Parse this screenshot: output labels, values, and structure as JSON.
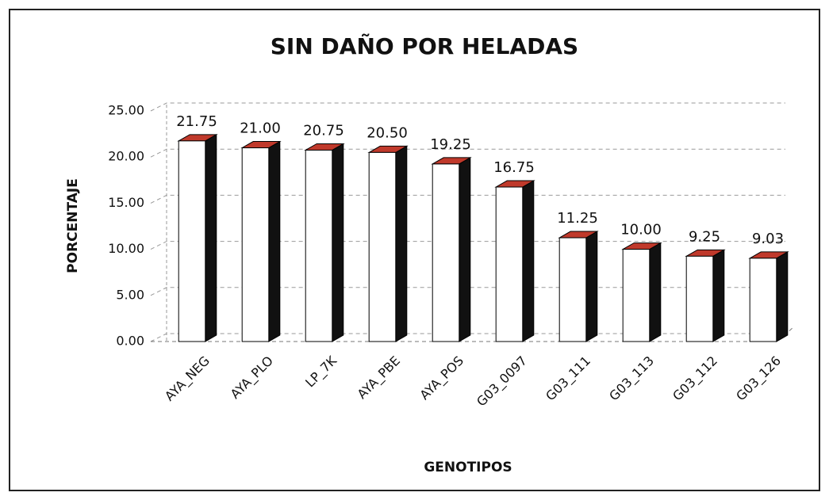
{
  "chart_data": {
    "type": "bar3d",
    "title": "SIN DAÑO POR HELADAS",
    "x_label": "GENOTIPOS",
    "y_label": "PORCENTAJE",
    "categories": [
      "AYA_NEG",
      "AYA_PLO",
      "LP_7K",
      "AYA_PBE",
      "AYA_POS",
      "G03_0097",
      "G03_111",
      "G03_113",
      "G03_112",
      "G03_126"
    ],
    "values": [
      21.75,
      21.0,
      20.75,
      20.5,
      19.25,
      16.75,
      11.25,
      10.0,
      9.25,
      9.03
    ],
    "value_labels": [
      "21.75",
      "21.00",
      "20.75",
      "20.50",
      "19.25",
      "16.75",
      "11.25",
      "10.00",
      "9.25",
      "9.03"
    ],
    "color": "#ffffff",
    "side_color": "#111111",
    "ylim": [
      0,
      25
    ],
    "yticks": [
      {
        "value": 0,
        "label": "0.00"
      },
      {
        "value": 5,
        "label": "5.00"
      },
      {
        "value": 10,
        "label": "10.00"
      },
      {
        "value": 15,
        "label": "15.00"
      },
      {
        "value": 20,
        "label": "20.00"
      },
      {
        "value": 25,
        "label": "25.00"
      }
    ],
    "grid": true
  }
}
